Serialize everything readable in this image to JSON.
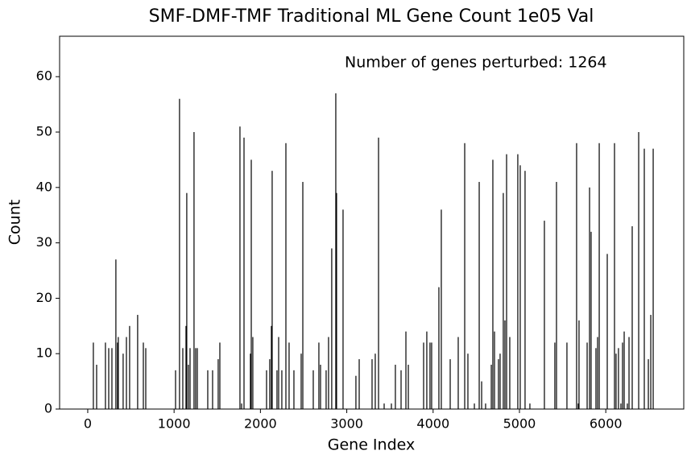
{
  "chart_data": {
    "type": "bar",
    "title": "SMF-DMF-TMF Traditional ML Gene Count 1e05 Val",
    "annotation": "Number of genes perturbed: 1264",
    "xlabel": "Gene Index",
    "ylabel": "Count",
    "color": "#000000",
    "x": [
      65,
      103,
      205,
      243,
      280,
      326,
      345,
      354,
      410,
      448,
      485,
      578,
      644,
      672,
      1017,
      1063,
      1101,
      1138,
      1147,
      1166,
      1185,
      1231,
      1250,
      1269,
      1390,
      1446,
      1511,
      1530,
      1763,
      1782,
      1810,
      1884,
      1894,
      1912,
      2071,
      2108,
      2127,
      2136,
      2192,
      2211,
      2248,
      2295,
      2332,
      2388,
      2472,
      2491,
      2612,
      2677,
      2696,
      2761,
      2789,
      2826,
      2873,
      2882,
      2957,
      3106,
      3144,
      3293,
      3330,
      3368,
      3433,
      3517,
      3563,
      3629,
      3685,
      3713,
      3890,
      3927,
      3964,
      3983,
      4067,
      4095,
      4198,
      4291,
      4366,
      4403,
      4478,
      4534,
      4562,
      4608,
      4674,
      4692,
      4711,
      4757,
      4776,
      4813,
      4832,
      4851,
      4888,
      4981,
      5009,
      5065,
      5121,
      5289,
      5410,
      5429,
      5550,
      5662,
      5681,
      5690,
      5784,
      5812,
      5830,
      5886,
      5905,
      5924,
      6017,
      6101,
      6119,
      6147,
      6175,
      6194,
      6213,
      6250,
      6269,
      6306,
      6381,
      6446,
      6493,
      6521,
      6549
    ],
    "values": [
      12,
      8,
      12,
      11,
      11,
      27,
      12,
      13,
      10,
      13,
      15,
      17,
      12,
      11,
      7,
      56,
      11,
      15,
      39,
      8,
      11,
      50,
      11,
      11,
      7,
      7,
      9,
      12,
      51,
      1,
      49,
      10,
      45,
      13,
      7,
      9,
      15,
      43,
      7,
      13,
      7,
      48,
      12,
      7,
      10,
      41,
      7,
      12,
      8,
      7,
      13,
      29,
      57,
      39,
      36,
      6,
      9,
      9,
      10,
      49,
      1,
      1,
      8,
      7,
      14,
      8,
      12,
      14,
      12,
      12,
      22,
      36,
      9,
      13,
      48,
      10,
      1,
      41,
      5,
      1,
      8,
      45,
      14,
      9,
      10,
      39,
      16,
      46,
      13,
      46,
      44,
      43,
      1,
      34,
      12,
      41,
      12,
      48,
      1,
      16,
      12,
      40,
      32,
      11,
      13,
      48,
      28,
      48,
      10,
      11,
      1,
      12,
      14,
      1,
      13,
      33,
      50,
      47,
      9,
      17,
      47
    ],
    "xlim": [
      -326,
      6903
    ],
    "ylim": [
      0,
      67.3
    ],
    "xticks": [
      0,
      1000,
      2000,
      3000,
      4000,
      5000,
      6000
    ],
    "yticks": [
      0,
      10,
      20,
      30,
      40,
      50,
      60
    ]
  }
}
